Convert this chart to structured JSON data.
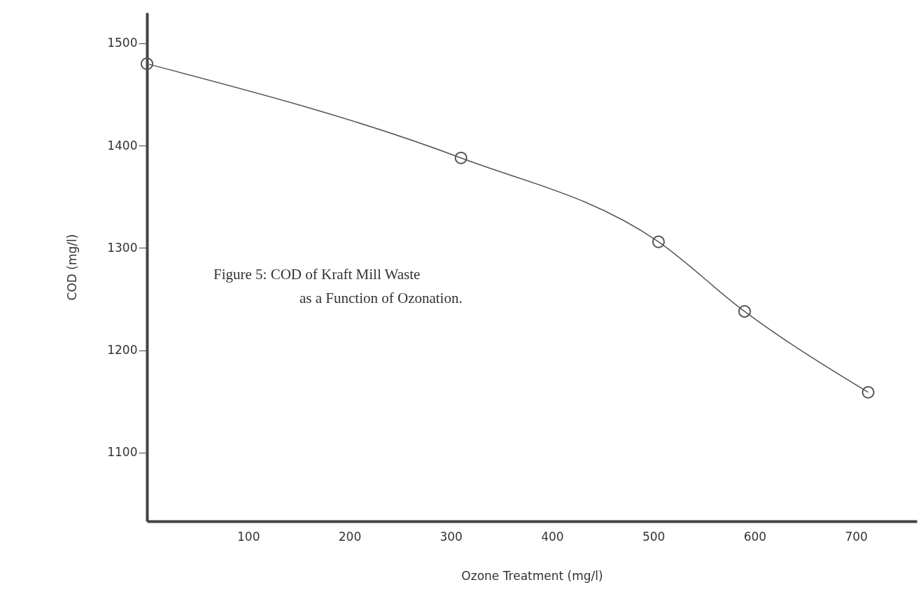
{
  "chart_data": {
    "type": "line",
    "xlabel": "Ozone Treatment (mg/l)",
    "ylabel": "COD (mg/l)",
    "x": [
      0,
      310,
      505,
      590,
      712
    ],
    "series": [
      {
        "color": "#555555",
        "values": [
          1480,
          1388,
          1306,
          1238,
          1159
        ]
      }
    ],
    "xlim": [
      0,
      760
    ],
    "ylim": [
      1033,
      1530
    ],
    "xticks": [
      100,
      200,
      300,
      400,
      500,
      600,
      700
    ],
    "yticks": [
      1100,
      1200,
      1300,
      1400,
      1500
    ],
    "marker": "circle",
    "grid": false,
    "annotations": [
      "Figure 5:  COD of Kraft Mill Waste",
      "as a Function of Ozonation."
    ]
  }
}
